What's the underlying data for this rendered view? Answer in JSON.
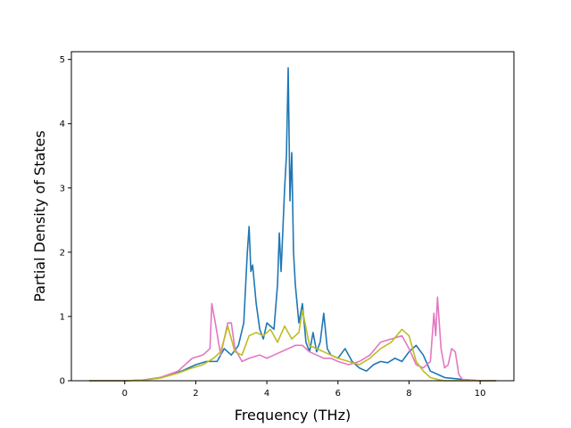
{
  "chart_data": {
    "type": "line",
    "title": "",
    "xlabel": "Frequency (THz)",
    "ylabel": "Partial Density of States",
    "xlim": [
      -1.5,
      10.95
    ],
    "ylim": [
      0,
      5.12
    ],
    "xticks": [
      0,
      2,
      4,
      6,
      8,
      10
    ],
    "yticks": [
      0,
      1,
      2,
      3,
      4,
      5
    ],
    "grid": false,
    "legend": "none",
    "series": [
      {
        "color": "#1f77b4",
        "x": [
          -1.0,
          0.0,
          0.5,
          1.0,
          1.3,
          1.6,
          2.0,
          2.3,
          2.6,
          2.8,
          3.0,
          3.2,
          3.35,
          3.45,
          3.5,
          3.55,
          3.6,
          3.7,
          3.8,
          3.9,
          4.0,
          4.1,
          4.2,
          4.3,
          4.35,
          4.4,
          4.5,
          4.55,
          4.6,
          4.65,
          4.7,
          4.75,
          4.8,
          4.9,
          5.0,
          5.1,
          5.2,
          5.3,
          5.4,
          5.5,
          5.6,
          5.7,
          5.8,
          6.0,
          6.2,
          6.4,
          6.6,
          6.8,
          7.0,
          7.2,
          7.4,
          7.6,
          7.8,
          8.0,
          8.2,
          8.4,
          8.6,
          8.8,
          9.0,
          9.5,
          10.0,
          10.45
        ],
        "values": [
          0,
          0,
          0.01,
          0.05,
          0.1,
          0.15,
          0.25,
          0.3,
          0.3,
          0.5,
          0.4,
          0.55,
          0.9,
          2.0,
          2.4,
          1.7,
          1.8,
          1.2,
          0.8,
          0.65,
          0.9,
          0.85,
          0.8,
          1.5,
          2.3,
          1.7,
          3.0,
          3.5,
          4.87,
          2.8,
          3.55,
          2.0,
          1.5,
          0.9,
          1.2,
          0.6,
          0.45,
          0.75,
          0.45,
          0.6,
          1.05,
          0.5,
          0.4,
          0.35,
          0.5,
          0.3,
          0.2,
          0.15,
          0.25,
          0.3,
          0.28,
          0.35,
          0.3,
          0.45,
          0.55,
          0.4,
          0.15,
          0.1,
          0.05,
          0.02,
          0,
          0
        ]
      },
      {
        "color": "#e377c2",
        "x": [
          -1.0,
          0.0,
          0.5,
          1.0,
          1.5,
          1.9,
          2.2,
          2.4,
          2.45,
          2.55,
          2.7,
          2.9,
          3.0,
          3.1,
          3.3,
          3.5,
          3.8,
          4.0,
          4.2,
          4.4,
          4.6,
          4.8,
          5.0,
          5.2,
          5.4,
          5.6,
          5.8,
          6.0,
          6.3,
          6.6,
          6.9,
          7.2,
          7.5,
          7.8,
          8.0,
          8.2,
          8.4,
          8.6,
          8.7,
          8.75,
          8.8,
          8.85,
          8.9,
          9.0,
          9.1,
          9.2,
          9.3,
          9.4,
          9.5,
          10.0,
          10.45
        ],
        "values": [
          0,
          0,
          0.01,
          0.05,
          0.15,
          0.35,
          0.4,
          0.5,
          1.2,
          0.9,
          0.4,
          0.9,
          0.9,
          0.5,
          0.3,
          0.35,
          0.4,
          0.35,
          0.4,
          0.45,
          0.5,
          0.55,
          0.55,
          0.45,
          0.4,
          0.35,
          0.35,
          0.3,
          0.25,
          0.3,
          0.4,
          0.6,
          0.65,
          0.7,
          0.5,
          0.25,
          0.2,
          0.3,
          1.05,
          0.7,
          1.3,
          0.9,
          0.5,
          0.2,
          0.25,
          0.5,
          0.45,
          0.1,
          0.02,
          0,
          0
        ]
      },
      {
        "color": "#bcbd22",
        "x": [
          -1.0,
          0.0,
          0.5,
          1.0,
          1.5,
          1.9,
          2.2,
          2.5,
          2.7,
          2.9,
          3.1,
          3.3,
          3.5,
          3.7,
          3.9,
          4.1,
          4.3,
          4.5,
          4.7,
          4.9,
          5.0,
          5.2,
          5.4,
          5.6,
          5.8,
          6.0,
          6.3,
          6.6,
          6.9,
          7.2,
          7.5,
          7.8,
          8.0,
          8.2,
          8.4,
          8.6,
          8.8,
          9.0,
          10.0,
          10.45
        ],
        "values": [
          0,
          0,
          0.01,
          0.04,
          0.12,
          0.2,
          0.25,
          0.35,
          0.45,
          0.85,
          0.45,
          0.4,
          0.7,
          0.75,
          0.7,
          0.8,
          0.6,
          0.85,
          0.65,
          0.75,
          1.1,
          0.55,
          0.5,
          0.45,
          0.4,
          0.35,
          0.3,
          0.25,
          0.35,
          0.5,
          0.6,
          0.8,
          0.7,
          0.3,
          0.15,
          0.05,
          0.02,
          0,
          0,
          0
        ]
      }
    ]
  }
}
